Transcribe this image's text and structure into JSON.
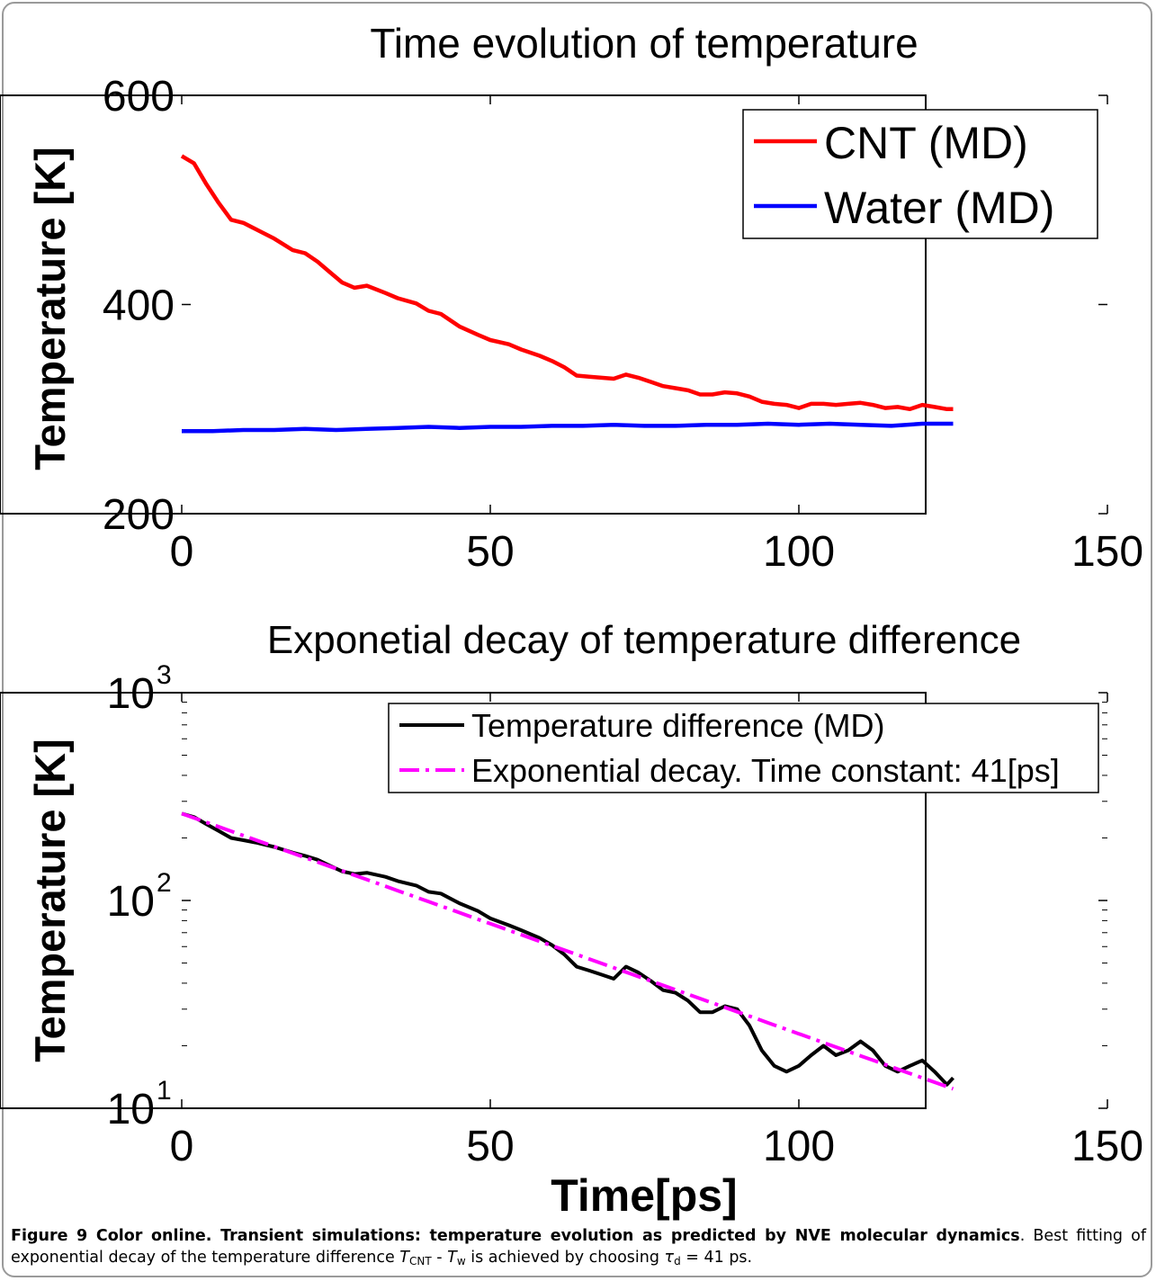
{
  "colors": {
    "cnt": "#ff0000",
    "water": "#0000ff",
    "difference": "#000000",
    "fit": "#ff00ff",
    "axes": "#000000"
  },
  "chart_data": [
    {
      "type": "line",
      "title": "Time evolution of temperature",
      "xlabel": "",
      "ylabel": "Temperature [K]",
      "xlim": [
        0,
        150
      ],
      "ylim": [
        200,
        600
      ],
      "xticks": [
        "0",
        "50",
        "100",
        "150"
      ],
      "yticks": [
        "200",
        "400",
        "600"
      ],
      "legend_position": "top-right",
      "series": [
        {
          "name": "CNT (MD)",
          "color": "#ff0000",
          "x": [
            0,
            2,
            4,
            6,
            8,
            10,
            12,
            15,
            18,
            20,
            22,
            24,
            26,
            28,
            30,
            33,
            35,
            38,
            40,
            42,
            45,
            48,
            50,
            53,
            55,
            58,
            60,
            62,
            64,
            66,
            68,
            70,
            72,
            74,
            76,
            78,
            80,
            82,
            84,
            86,
            88,
            90,
            92,
            94,
            96,
            98,
            100,
            102,
            104,
            106,
            108,
            110,
            112,
            114,
            116,
            118,
            120,
            122,
            124,
            125
          ],
          "y": [
            542,
            535,
            515,
            497,
            481,
            478,
            472,
            463,
            452,
            449,
            441,
            431,
            421,
            416,
            418,
            411,
            406,
            401,
            394,
            391,
            379,
            371,
            366,
            362,
            357,
            351,
            346,
            340,
            332,
            331,
            330,
            329,
            333,
            330,
            326,
            322,
            320,
            318,
            314,
            314,
            316,
            315,
            312,
            307,
            305,
            304,
            301,
            305,
            305,
            304,
            305,
            306,
            304,
            301,
            302,
            300,
            304,
            302,
            300,
            300
          ]
        },
        {
          "name": "Water (MD)",
          "color": "#0000ff",
          "x": [
            0,
            5,
            10,
            15,
            20,
            25,
            30,
            35,
            40,
            45,
            50,
            55,
            60,
            65,
            70,
            75,
            80,
            85,
            90,
            95,
            100,
            105,
            110,
            115,
            120,
            125
          ],
          "y": [
            279,
            279,
            280,
            280,
            281,
            280,
            281,
            282,
            283,
            282,
            283,
            283,
            284,
            284,
            285,
            284,
            284,
            285,
            285,
            286,
            285,
            286,
            285,
            284,
            286,
            286
          ]
        }
      ]
    },
    {
      "type": "line",
      "title": "Exponetial decay of temperature difference",
      "xlabel": "Time[ps]",
      "ylabel": "Temperature [K]",
      "xlim": [
        0,
        150
      ],
      "ylim": [
        10,
        1000
      ],
      "yscale": "log",
      "xticks": [
        "0",
        "50",
        "100",
        "150"
      ],
      "legend_position": "top-right",
      "series": [
        {
          "name": "Temperature difference (MD)",
          "color": "#000000",
          "x": [
            0,
            2,
            4,
            6,
            8,
            10,
            12,
            15,
            18,
            20,
            22,
            24,
            26,
            28,
            30,
            33,
            35,
            38,
            40,
            42,
            45,
            48,
            50,
            53,
            55,
            58,
            60,
            62,
            64,
            66,
            68,
            70,
            72,
            74,
            76,
            78,
            80,
            82,
            84,
            86,
            88,
            90,
            92,
            94,
            96,
            98,
            100,
            102,
            104,
            106,
            108,
            110,
            112,
            114,
            116,
            118,
            120,
            122,
            124,
            125
          ],
          "y": [
            262,
            252,
            233,
            216,
            200,
            195,
            190,
            181,
            170,
            164,
            157,
            147,
            138,
            134,
            136,
            130,
            124,
            118,
            110,
            108,
            97,
            89,
            82,
            76,
            72,
            66,
            61,
            55,
            48,
            46,
            44,
            42,
            48,
            45,
            41,
            37,
            36,
            33,
            29,
            29,
            31,
            30,
            25,
            19,
            16,
            15,
            16,
            18,
            20,
            18,
            19,
            21,
            19,
            16,
            15,
            16,
            17,
            15,
            13,
            14
          ]
        },
        {
          "name": "Exponential decay. Time constant: 41[ps]",
          "color": "#ff00ff",
          "x": [
            0,
            125
          ],
          "y": [
            262,
            12.4
          ]
        }
      ]
    }
  ],
  "caption": {
    "figure_label": "Figure 9 Color online. Transient simulations: temperature evolution as predicted by NVE molecular dynamics",
    "text_a": ". Best fitting of exponential decay of the temperature difference ",
    "t_cnt": "T",
    "t_cnt_sub": "CNT",
    "minus": " - ",
    "t_w": "T",
    "t_w_sub": "w",
    "text_b": " is achieved by choosing ",
    "tau": "τ",
    "tau_sub": "d",
    "text_c": " = 41 ps."
  }
}
